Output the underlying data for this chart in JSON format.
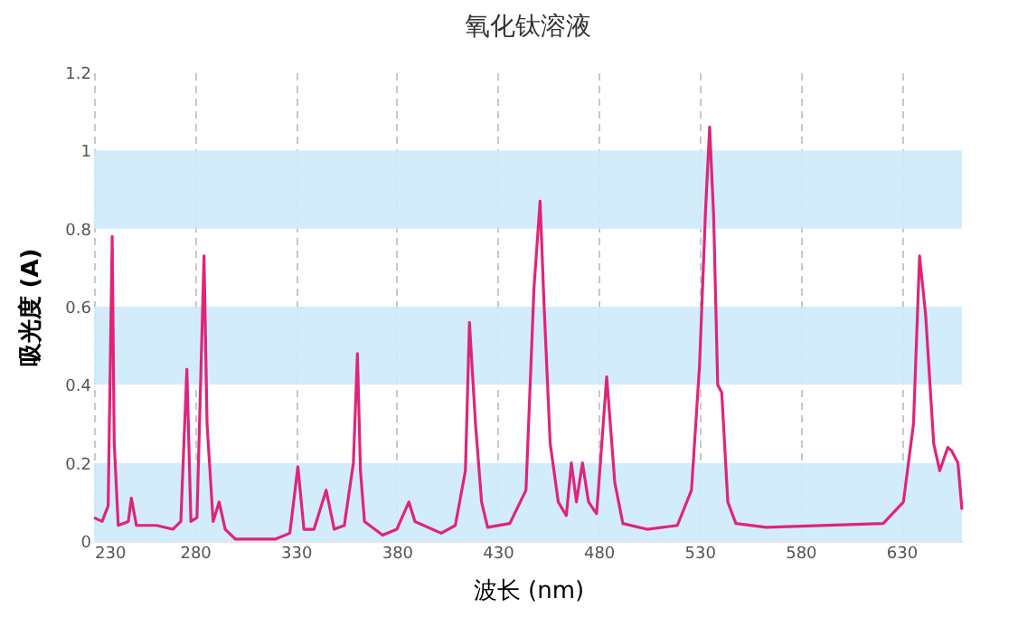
{
  "chart_data": {
    "type": "line",
    "title": "氧化钛溶液",
    "xlabel": "波长 (nm)",
    "ylabel": "吸光度 (A)",
    "xlim": [
      230,
      660
    ],
    "xticks": [
      230,
      280,
      330,
      380,
      430,
      480,
      530,
      580,
      630
    ],
    "ylim": [
      0,
      1.2
    ],
    "yticks": [
      0,
      0.2,
      0.4,
      0.6,
      0.8,
      1,
      1.2
    ],
    "grid": "x",
    "bands": [
      {
        "axis": "y",
        "from": 0,
        "to": 0.2,
        "color": "#cdeaf9"
      },
      {
        "axis": "y",
        "from": 0.4,
        "to": 0.6,
        "color": "#cdeaf9"
      },
      {
        "axis": "y",
        "from": 0.8,
        "to": 1,
        "color": "#cdeaf9"
      }
    ],
    "series": [
      {
        "color": "#e0247a",
        "x": [
          230,
          234,
          237,
          239,
          240,
          242,
          247,
          248.5,
          251,
          261,
          269,
          273,
          276,
          278,
          281,
          284.5,
          286,
          289,
          292,
          295,
          300,
          320,
          327,
          331,
          334,
          339,
          345,
          349,
          354,
          358.5,
          360.5,
          362,
          364,
          373,
          380,
          386,
          389,
          402,
          409,
          414,
          416,
          419,
          422,
          425,
          436,
          444,
          448,
          451,
          453,
          456,
          460,
          464,
          466.5,
          469,
          472,
          475,
          479,
          484,
          488,
          492,
          504,
          519,
          526,
          530,
          533,
          535,
          537,
          539,
          541,
          544,
          548,
          563,
          621,
          631,
          636,
          639,
          642,
          646,
          649,
          653,
          655,
          658,
          660
        ],
        "values": [
          0.06,
          0.05,
          0.09,
          0.78,
          0.25,
          0.04,
          0.05,
          0.11,
          0.04,
          0.04,
          0.03,
          0.05,
          0.44,
          0.05,
          0.06,
          0.73,
          0.3,
          0.05,
          0.1,
          0.03,
          0.005,
          0.005,
          0.02,
          0.19,
          0.03,
          0.03,
          0.13,
          0.03,
          0.04,
          0.2,
          0.48,
          0.18,
          0.05,
          0.015,
          0.03,
          0.1,
          0.05,
          0.02,
          0.04,
          0.18,
          0.56,
          0.3,
          0.1,
          0.035,
          0.045,
          0.13,
          0.65,
          0.87,
          0.6,
          0.25,
          0.1,
          0.065,
          0.2,
          0.1,
          0.2,
          0.1,
          0.07,
          0.42,
          0.15,
          0.045,
          0.03,
          0.04,
          0.13,
          0.45,
          0.85,
          1.06,
          0.83,
          0.4,
          0.38,
          0.1,
          0.045,
          0.035,
          0.045,
          0.1,
          0.3,
          0.73,
          0.58,
          0.25,
          0.18,
          0.24,
          0.23,
          0.2,
          0.08
        ]
      }
    ]
  }
}
